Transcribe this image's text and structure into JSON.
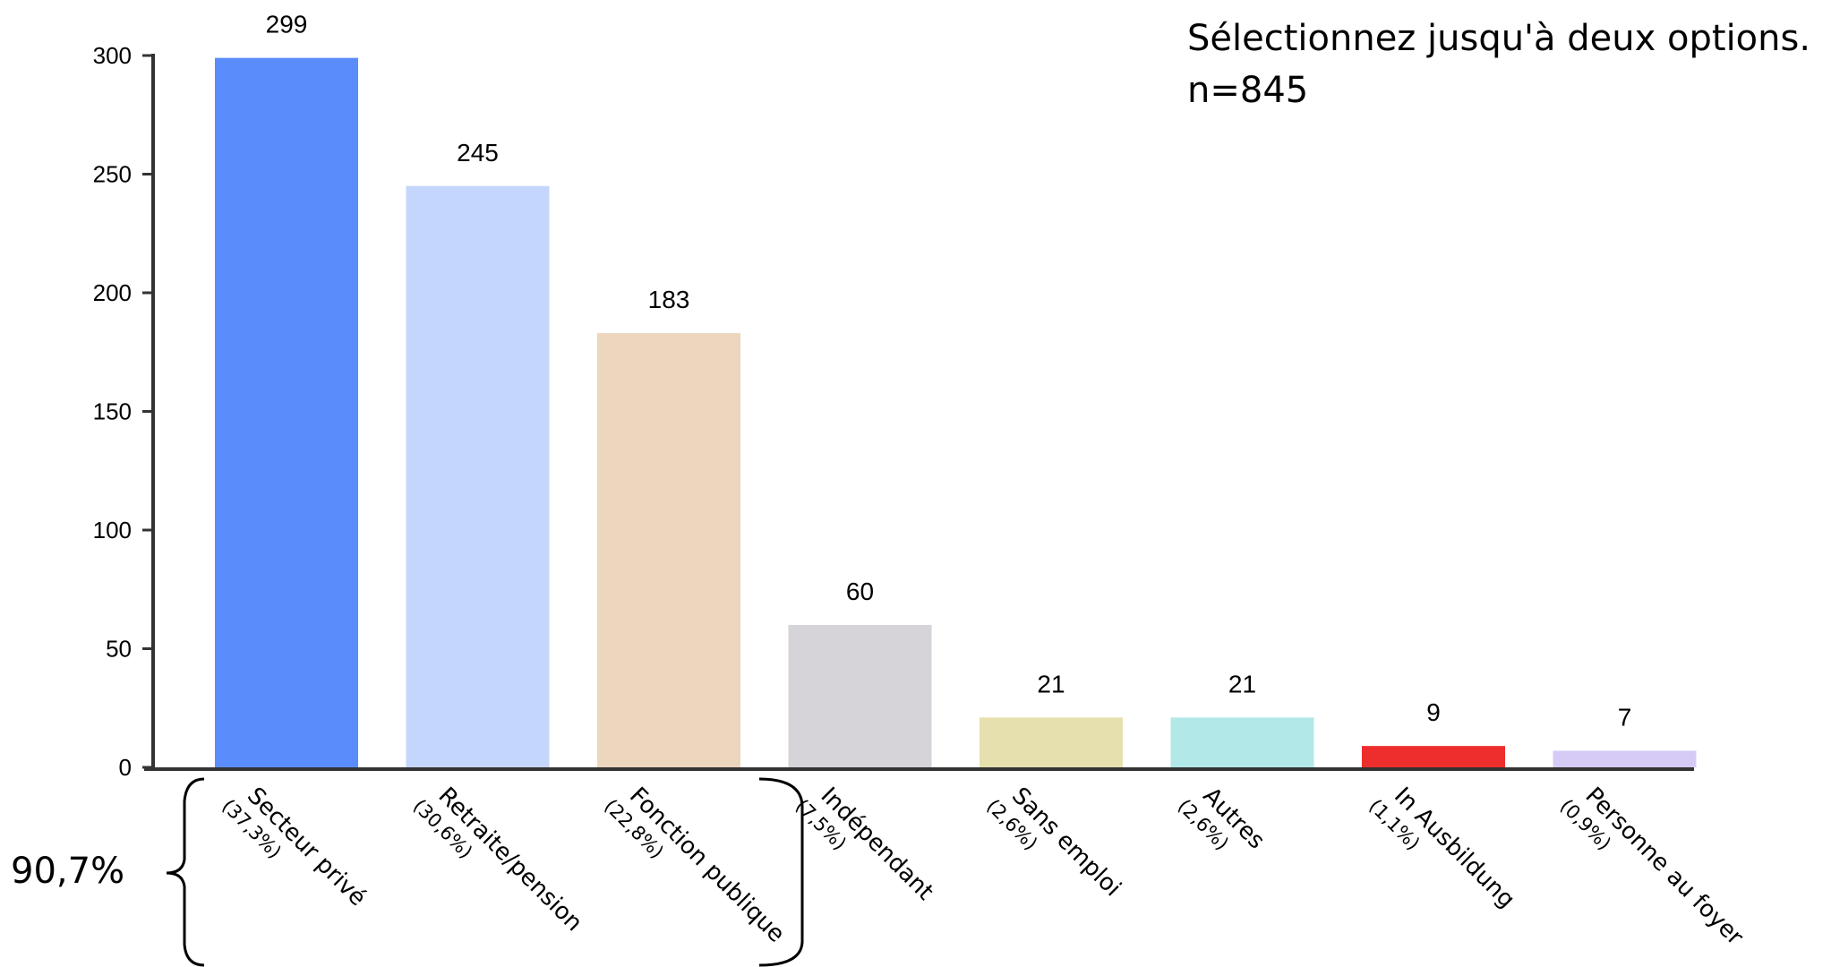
{
  "chart_data": {
    "type": "bar",
    "categories": [
      "Secteur privé",
      "Retraite/pension",
      "Fonction publique",
      "Indépendant",
      "Sans emploi",
      "Autres",
      "In Ausbildung",
      "Personne au foyer"
    ],
    "percentages": [
      "(37,3%)",
      "(30,6%)",
      "(22,8%)",
      "(7,5%)",
      "(2,6%)",
      "(2,6%)",
      "(1,1%)",
      "(0,9%)"
    ],
    "values": [
      299,
      245,
      183,
      60,
      21,
      21,
      9,
      7
    ],
    "colors": [
      "#5b8cfc",
      "#c5d6fd",
      "#ecd6bd",
      "#d6d4d8",
      "#e6e0ae",
      "#b3e8e8",
      "#ee2d2d",
      "#d6cbf7"
    ],
    "ylim": [
      0,
      300
    ],
    "yticks": [
      0,
      50,
      100,
      150,
      200,
      250,
      300
    ],
    "xlabel": "",
    "ylabel": "",
    "grid": false,
    "annotations": {
      "note_line1": "Sélectionnez jusqu'à deux options.",
      "note_line2": "n=845",
      "group_percentage": "90,7%"
    }
  }
}
